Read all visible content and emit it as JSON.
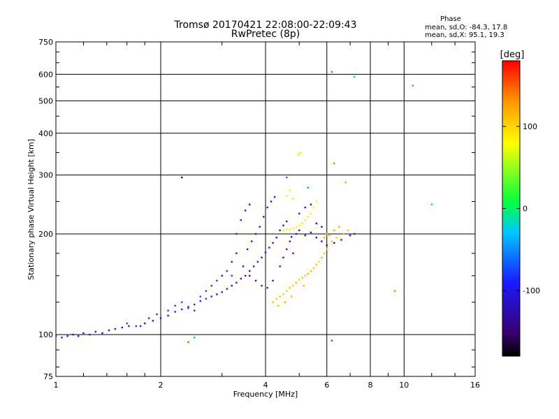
{
  "chart_data": {
    "type": "scatter",
    "title": "Tromsø 20170421 22:08:00-22:09:43",
    "subtitle": "RwPretec (8p)",
    "xlabel": "Frequency [MHz]",
    "ylabel": "Stationary phase Virtual Height [km]",
    "x_scale": "log",
    "y_scale": "log",
    "xlim": [
      1,
      16
    ],
    "ylim": [
      75,
      750
    ],
    "x_ticks": [
      1,
      2,
      4,
      6,
      8,
      10,
      16
    ],
    "y_ticks": [
      75,
      100,
      200,
      300,
      400,
      500,
      600,
      750
    ],
    "grid": true,
    "phase_stats": {
      "title": "Phase",
      "o_line": "mean, sd,O: -84.3, 17.8",
      "x_line": "mean, sd,X:  95.1, 19.3"
    },
    "colorbar": {
      "label": "[deg]",
      "range": [
        -180,
        180
      ],
      "ticks": [
        100,
        0,
        -100
      ],
      "colors": [
        "#000000",
        "#3a006e",
        "#1a1aff",
        "#00c8ff",
        "#00ff40",
        "#ffff00",
        "#ff9900",
        "#ff0000"
      ]
    },
    "series": [
      {
        "values": [
          [
            1.0,
            99,
            -100
          ],
          [
            1.04,
            98,
            -90
          ],
          [
            1.08,
            99,
            -105
          ],
          [
            1.12,
            100,
            -95
          ],
          [
            1.16,
            99,
            -100
          ],
          [
            1.2,
            101,
            -110
          ],
          [
            1.25,
            100,
            -95
          ],
          [
            1.3,
            102,
            -100
          ],
          [
            1.36,
            101,
            -90
          ],
          [
            1.42,
            103,
            -100
          ],
          [
            1.48,
            104,
            -105
          ],
          [
            1.55,
            105,
            -95
          ],
          [
            1.62,
            106,
            -100
          ],
          [
            1.7,
            106,
            -80
          ],
          [
            1.8,
            108,
            -95
          ],
          [
            1.9,
            110,
            -100
          ],
          [
            2.0,
            112,
            -95
          ],
          [
            2.1,
            114,
            -90
          ],
          [
            2.2,
            117,
            -100
          ],
          [
            2.3,
            119,
            -85
          ],
          [
            2.4,
            121,
            -95
          ],
          [
            2.5,
            123,
            -80
          ],
          [
            2.6,
            126,
            -90
          ],
          [
            2.7,
            128,
            -75
          ],
          [
            2.8,
            130,
            -85
          ],
          [
            2.9,
            132,
            -90
          ],
          [
            3.0,
            134,
            -95
          ],
          [
            3.1,
            137,
            -85
          ],
          [
            3.2,
            140,
            -100
          ],
          [
            3.3,
            143,
            -90
          ],
          [
            3.4,
            147,
            -95
          ],
          [
            3.5,
            150,
            -100
          ],
          [
            3.6,
            155,
            -105
          ],
          [
            3.7,
            160,
            -95
          ],
          [
            3.8,
            165,
            -100
          ],
          [
            3.9,
            170,
            -110
          ],
          [
            4.0,
            176,
            -100
          ],
          [
            4.1,
            182,
            -105
          ],
          [
            4.2,
            188,
            -95
          ],
          [
            4.3,
            195,
            -100
          ],
          [
            4.4,
            205,
            -110
          ],
          [
            4.5,
            212,
            -100
          ],
          [
            4.6,
            218,
            -105
          ],
          [
            4.75,
            196,
            -110
          ],
          [
            4.9,
            200,
            -100
          ],
          [
            5.0,
            205,
            -115
          ],
          [
            5.2,
            198,
            -100
          ],
          [
            5.4,
            202,
            -110
          ],
          [
            5.6,
            195,
            -105
          ],
          [
            5.8,
            190,
            -100
          ],
          [
            6.0,
            185,
            -95
          ],
          [
            6.3,
            188,
            -105
          ],
          [
            6.6,
            192,
            -100
          ],
          [
            7.0,
            198,
            -95
          ],
          [
            7.2,
            200,
            -100
          ],
          [
            3.3,
            200,
            -90
          ],
          [
            3.4,
            220,
            -95
          ],
          [
            3.5,
            235,
            -100
          ],
          [
            3.6,
            245,
            -105
          ],
          [
            3.55,
            180,
            -95
          ],
          [
            3.65,
            190,
            -90
          ],
          [
            3.75,
            200,
            -100
          ],
          [
            3.85,
            210,
            -95
          ],
          [
            3.95,
            225,
            -110
          ],
          [
            4.05,
            240,
            -100
          ],
          [
            4.15,
            250,
            -105
          ],
          [
            4.25,
            258,
            -95
          ],
          [
            3.2,
            165,
            -100
          ],
          [
            3.3,
            175,
            -95
          ],
          [
            3.45,
            160,
            -100
          ],
          [
            3.6,
            150,
            -105
          ],
          [
            3.75,
            145,
            -100
          ],
          [
            3.9,
            140,
            -95
          ],
          [
            4.05,
            138,
            -100
          ],
          [
            4.2,
            145,
            -110
          ],
          [
            2.6,
            130,
            -70
          ],
          [
            2.7,
            135,
            -75
          ],
          [
            2.8,
            140,
            -80
          ],
          [
            2.9,
            145,
            -75
          ],
          [
            3.0,
            150,
            -85
          ],
          [
            3.1,
            155,
            -80
          ],
          [
            3.2,
            150,
            -75
          ],
          [
            2.3,
            125,
            -70
          ],
          [
            2.4,
            120,
            -75
          ],
          [
            2.5,
            118,
            -80
          ],
          [
            2.2,
            122,
            -70
          ],
          [
            2.1,
            118,
            -75
          ],
          [
            1.95,
            115,
            -80
          ],
          [
            1.85,
            112,
            -85
          ],
          [
            1.75,
            106,
            -90
          ],
          [
            4.4,
            160,
            -100
          ],
          [
            4.5,
            170,
            -105
          ],
          [
            4.6,
            180,
            -110
          ],
          [
            4.7,
            190,
            -100
          ],
          [
            4.8,
            175,
            -95
          ],
          [
            5.0,
            230,
            -110
          ],
          [
            5.2,
            240,
            -120
          ],
          [
            5.4,
            245,
            -105
          ],
          [
            5.6,
            215,
            -115
          ],
          [
            5.8,
            210,
            -100
          ]
        ]
      },
      {
        "values": [
          [
            4.3,
            128,
            100
          ],
          [
            4.4,
            130,
            110
          ],
          [
            4.5,
            132,
            100
          ],
          [
            4.6,
            135,
            105
          ],
          [
            4.7,
            138,
            110
          ],
          [
            4.8,
            140,
            100
          ],
          [
            4.9,
            143,
            115
          ],
          [
            5.0,
            146,
            105
          ],
          [
            5.1,
            148,
            110
          ],
          [
            5.2,
            150,
            100
          ],
          [
            5.3,
            152,
            120
          ],
          [
            5.4,
            155,
            110
          ],
          [
            5.5,
            158,
            105
          ],
          [
            5.6,
            162,
            110
          ],
          [
            5.7,
            165,
            100
          ],
          [
            5.8,
            170,
            115
          ],
          [
            5.9,
            175,
            110
          ],
          [
            6.0,
            180,
            105
          ],
          [
            6.2,
            190,
            110
          ],
          [
            6.4,
            195,
            100
          ],
          [
            4.5,
            205,
            80
          ],
          [
            4.6,
            207,
            85
          ],
          [
            4.7,
            206,
            90
          ],
          [
            4.8,
            208,
            85
          ],
          [
            4.9,
            210,
            80
          ],
          [
            5.0,
            212,
            85
          ],
          [
            5.1,
            215,
            90
          ],
          [
            5.2,
            220,
            85
          ],
          [
            5.3,
            225,
            90
          ],
          [
            5.4,
            230,
            85
          ],
          [
            5.5,
            240,
            80
          ],
          [
            5.6,
            250,
            85
          ],
          [
            4.95,
            345,
            70
          ],
          [
            5.0,
            348,
            75
          ],
          [
            5.05,
            350,
            70
          ],
          [
            4.6,
            260,
            80
          ],
          [
            4.7,
            270,
            85
          ],
          [
            4.8,
            255,
            90
          ],
          [
            5.9,
            195,
            120
          ],
          [
            6.0,
            200,
            115
          ],
          [
            6.1,
            198,
            110
          ],
          [
            6.3,
            205,
            120
          ],
          [
            6.5,
            210,
            125
          ],
          [
            6.7,
            200,
            115
          ],
          [
            6.9,
            205,
            110
          ],
          [
            4.2,
            125,
            110
          ],
          [
            4.35,
            122,
            115
          ],
          [
            4.55,
            125,
            120
          ],
          [
            4.75,
            130,
            110
          ],
          [
            5.15,
            140,
            115
          ],
          [
            2.4,
            95,
            150
          ],
          [
            9.4,
            135,
            140
          ],
          [
            6.8,
            285,
            130
          ],
          [
            6.3,
            325,
            140
          ]
        ]
      },
      {
        "values": [
          [
            6.2,
            610,
            -50
          ],
          [
            7.2,
            590,
            -30
          ],
          [
            10.6,
            555,
            -40
          ],
          [
            12.0,
            245,
            -20
          ],
          [
            2.3,
            295,
            -150
          ],
          [
            6.2,
            96,
            -60
          ],
          [
            2.5,
            98,
            -40
          ],
          [
            4.6,
            295,
            -60
          ],
          [
            5.3,
            275,
            -50
          ],
          [
            1.6,
            108,
            -70
          ]
        ]
      }
    ]
  }
}
